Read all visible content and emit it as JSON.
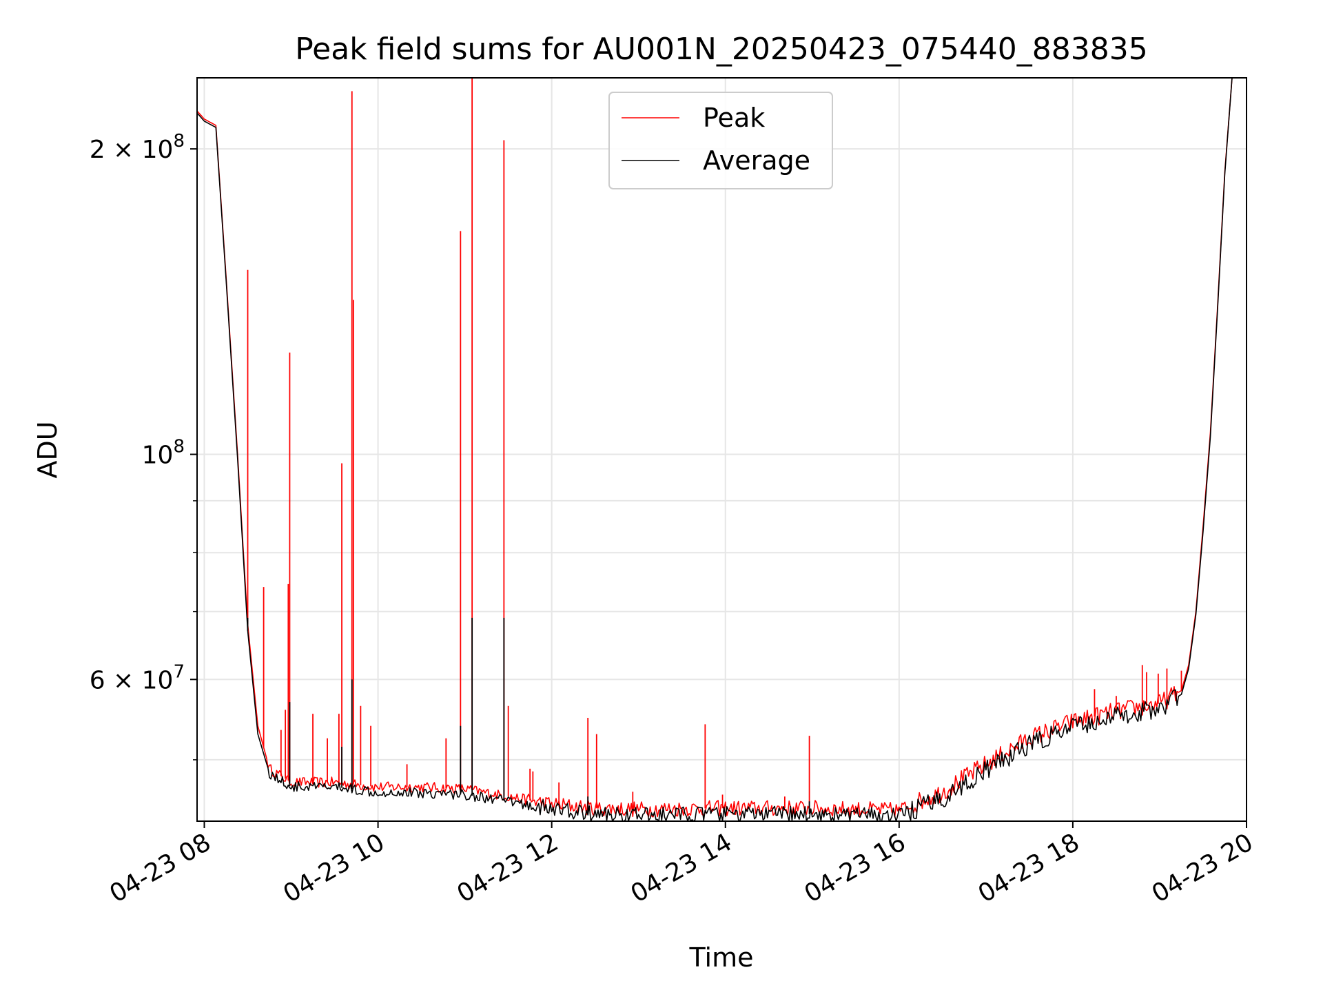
{
  "chart_data": {
    "type": "line",
    "title": "Peak field sums for AU001N_20250423_075440_883835",
    "xlabel": "Time",
    "ylabel": "ADU",
    "y_scale": "log",
    "ylim": [
      43500000,
      235000000
    ],
    "xlim": [
      "2025-04-23 07:55",
      "2025-04-23 20:00"
    ],
    "grid": true,
    "legend_position": "upper center",
    "x_tick_labels": [
      "04-23 08",
      "04-23 10",
      "04-23 12",
      "04-23 14",
      "04-23 16",
      "04-23 18",
      "04-23 20"
    ],
    "x_ticks": [
      "2025-04-23 08:00",
      "2025-04-23 10:00",
      "2025-04-23 12:00",
      "2025-04-23 14:00",
      "2025-04-23 16:00",
      "2025-04-23 18:00",
      "2025-04-23 20:00"
    ],
    "y_tick_labels": [
      {
        "value": 200000000,
        "mantissa": "2",
        "exponent": "8"
      },
      {
        "value": 100000000,
        "mantissa": "",
        "exponent": "8"
      },
      {
        "value": 60000000,
        "mantissa": "6",
        "exponent": "7"
      }
    ],
    "y_minor_ticks": [
      50000000,
      70000000,
      80000000,
      90000000
    ],
    "series": [
      {
        "name": "Peak",
        "color": "#ff0000",
        "baseline": [
          [
            "2025-04-23 07:55",
            218000000
          ],
          [
            "2025-04-23 08:00",
            214000000
          ],
          [
            "2025-04-23 08:08",
            211000000
          ],
          [
            "2025-04-23 08:15",
            150000000
          ],
          [
            "2025-04-23 08:23",
            100000000
          ],
          [
            "2025-04-23 08:30",
            68000000
          ],
          [
            "2025-04-23 08:37",
            54000000
          ],
          [
            "2025-04-23 08:45",
            49000000
          ],
          [
            "2025-04-23 09:00",
            47500000
          ],
          [
            "2025-04-23 09:30",
            47500000
          ],
          [
            "2025-04-23 10:00",
            47000000
          ],
          [
            "2025-04-23 10:30",
            47000000
          ],
          [
            "2025-04-23 11:00",
            46800000
          ],
          [
            "2025-04-23 11:30",
            46000000
          ],
          [
            "2025-04-23 12:00",
            45200000
          ],
          [
            "2025-04-23 12:30",
            44800000
          ],
          [
            "2025-04-23 13:00",
            44700000
          ],
          [
            "2025-04-23 14:00",
            44800000
          ],
          [
            "2025-04-23 15:00",
            44800000
          ],
          [
            "2025-04-23 16:00",
            44600000
          ],
          [
            "2025-04-23 16:30",
            46500000
          ],
          [
            "2025-04-23 17:00",
            49500000
          ],
          [
            "2025-04-23 17:30",
            52500000
          ],
          [
            "2025-04-23 18:00",
            54500000
          ],
          [
            "2025-04-23 18:30",
            55800000
          ],
          [
            "2025-04-23 19:00",
            56800000
          ],
          [
            "2025-04-23 19:15",
            58500000
          ],
          [
            "2025-04-23 19:20",
            62000000
          ],
          [
            "2025-04-23 19:25",
            70000000
          ],
          [
            "2025-04-23 19:30",
            85000000
          ],
          [
            "2025-04-23 19:35",
            105000000
          ],
          [
            "2025-04-23 19:40",
            140000000
          ],
          [
            "2025-04-23 19:45",
            190000000
          ],
          [
            "2025-04-23 19:50",
            235000000
          ]
        ],
        "spikes": [
          [
            "2025-04-23 08:30",
            152000000
          ],
          [
            "2025-04-23 08:41",
            74000000
          ],
          [
            "2025-04-23 08:53",
            53500000
          ],
          [
            "2025-04-23 08:56",
            56000000
          ],
          [
            "2025-04-23 08:58",
            74500000
          ],
          [
            "2025-04-23 08:59",
            126000000
          ],
          [
            "2025-04-23 09:15",
            55500000
          ],
          [
            "2025-04-23 09:25",
            52500000
          ],
          [
            "2025-04-23 09:33",
            55500000
          ],
          [
            "2025-04-23 09:35",
            98000000
          ],
          [
            "2025-04-23 09:42",
            228000000
          ],
          [
            "2025-04-23 09:43",
            142000000
          ],
          [
            "2025-04-23 09:48",
            56500000
          ],
          [
            "2025-04-23 09:55",
            54000000
          ],
          [
            "2025-04-23 10:20",
            49500000
          ],
          [
            "2025-04-23 10:47",
            52500000
          ],
          [
            "2025-04-23 10:57",
            166000000
          ],
          [
            "2025-04-23 11:05",
            235000000
          ],
          [
            "2025-04-23 11:27",
            204000000
          ],
          [
            "2025-04-23 11:30",
            56500000
          ],
          [
            "2025-04-23 11:45",
            49000000
          ],
          [
            "2025-04-23 11:47",
            48700000
          ],
          [
            "2025-04-23 12:05",
            47500000
          ],
          [
            "2025-04-23 12:25",
            55000000
          ],
          [
            "2025-04-23 12:31",
            53000000
          ],
          [
            "2025-04-23 12:56",
            46500000
          ],
          [
            "2025-04-23 13:46",
            54200000
          ],
          [
            "2025-04-23 13:58",
            46200000
          ],
          [
            "2025-04-23 14:41",
            46000000
          ],
          [
            "2025-04-23 14:58",
            52800000
          ],
          [
            "2025-04-23 18:15",
            58700000
          ],
          [
            "2025-04-23 18:30",
            57800000
          ],
          [
            "2025-04-23 18:48",
            62000000
          ],
          [
            "2025-04-23 18:51",
            61000000
          ],
          [
            "2025-04-23 18:59",
            60800000
          ],
          [
            "2025-04-23 19:05",
            61500000
          ],
          [
            "2025-04-23 19:15",
            61200000
          ]
        ]
      },
      {
        "name": "Average",
        "color": "#000000",
        "baseline": [
          [
            "2025-04-23 07:55",
            217000000
          ],
          [
            "2025-04-23 08:00",
            213000000
          ],
          [
            "2025-04-23 08:08",
            210000000
          ],
          [
            "2025-04-23 08:15",
            149000000
          ],
          [
            "2025-04-23 08:23",
            99000000
          ],
          [
            "2025-04-23 08:30",
            67000000
          ],
          [
            "2025-04-23 08:37",
            53000000
          ],
          [
            "2025-04-23 08:45",
            48500000
          ],
          [
            "2025-04-23 09:00",
            47000000
          ],
          [
            "2025-04-23 09:30",
            47000000
          ],
          [
            "2025-04-23 10:00",
            46500000
          ],
          [
            "2025-04-23 10:30",
            46400000
          ],
          [
            "2025-04-23 11:00",
            46200000
          ],
          [
            "2025-04-23 11:30",
            45500000
          ],
          [
            "2025-04-23 12:00",
            44700000
          ],
          [
            "2025-04-23 12:30",
            44200000
          ],
          [
            "2025-04-23 13:00",
            44100000
          ],
          [
            "2025-04-23 14:00",
            44200000
          ],
          [
            "2025-04-23 15:00",
            44200000
          ],
          [
            "2025-04-23 16:00",
            44000000
          ],
          [
            "2025-04-23 16:30",
            45800000
          ],
          [
            "2025-04-23 17:00",
            48800000
          ],
          [
            "2025-04-23 17:30",
            51800000
          ],
          [
            "2025-04-23 18:00",
            53800000
          ],
          [
            "2025-04-23 18:30",
            55200000
          ],
          [
            "2025-04-23 19:00",
            56200000
          ],
          [
            "2025-04-23 19:15",
            58000000
          ],
          [
            "2025-04-23 19:20",
            61500000
          ],
          [
            "2025-04-23 19:25",
            69500000
          ],
          [
            "2025-04-23 19:30",
            84000000
          ],
          [
            "2025-04-23 19:35",
            104000000
          ],
          [
            "2025-04-23 19:40",
            139000000
          ],
          [
            "2025-04-23 19:45",
            189000000
          ],
          [
            "2025-04-23 19:50",
            235000000
          ]
        ],
        "spikes": [
          [
            "2025-04-23 08:30",
            69000000
          ],
          [
            "2025-04-23 08:59",
            57000000
          ],
          [
            "2025-04-23 09:35",
            51500000
          ],
          [
            "2025-04-23 09:42",
            60000000
          ],
          [
            "2025-04-23 10:57",
            54000000
          ],
          [
            "2025-04-23 11:05",
            69000000
          ],
          [
            "2025-04-23 11:27",
            69000000
          ],
          [
            "2025-04-23 12:25",
            46000000
          ],
          [
            "2025-04-23 14:58",
            45500000
          ]
        ]
      }
    ]
  }
}
